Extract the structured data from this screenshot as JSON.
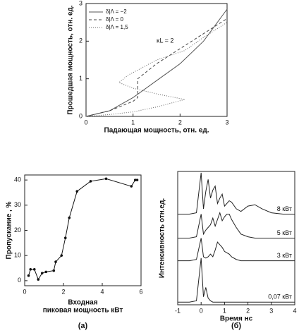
{
  "charts": [
    {
      "type": "line",
      "xlabel": "Падающая мощность, отн. ед.",
      "ylabel": "Прошедшая мощность, отн. ед.",
      "annotation": "κL = 2",
      "xlim": [
        0,
        3
      ],
      "xticks": [
        0,
        1,
        2,
        3
      ],
      "ylim": [
        0,
        3
      ],
      "yticks": [
        0,
        1,
        2,
        3
      ],
      "legend": "upper left",
      "series": [
        {
          "name": "δ|Λ = −2",
          "color": "#555555",
          "dash": "solid",
          "x": [
            0,
            0.5,
            1,
            1.5,
            2,
            2.5,
            3
          ],
          "values": [
            0,
            0.15,
            0.5,
            0.95,
            1.4,
            2.0,
            2.85
          ]
        },
        {
          "name": "δ|Λ = 0",
          "color": "#444444",
          "dash": "dashed",
          "x": [
            0,
            0.5,
            1.0,
            1.1,
            1.1,
            1.5,
            2.0,
            2.5,
            3
          ],
          "values": [
            0,
            0.15,
            0.4,
            0.5,
            1.0,
            1.4,
            1.8,
            2.2,
            2.6
          ]
        },
        {
          "name": "δ|Λ = 1,5",
          "color": "#666666",
          "dash": "dotted",
          "x": [
            0,
            0.5,
            1.0,
            1.5,
            2.1,
            1.5,
            1.0,
            0.7,
            0.9,
            1.5,
            2.1,
            2.5,
            3
          ],
          "values": [
            0,
            0.05,
            0.12,
            0.25,
            0.45,
            0.6,
            0.75,
            0.9,
            1.1,
            1.5,
            1.75,
            2.1,
            2.5
          ]
        }
      ]
    },
    {
      "type": "line",
      "xlabel": [
        "Входная",
        "пиковая мощность  кВт"
      ],
      "ylabel": "Пропускание , %",
      "caption": "(а)",
      "xlim": [
        0,
        6
      ],
      "xticks": [
        0,
        2,
        4,
        6
      ],
      "ylim": [
        -2,
        42
      ],
      "yticks": [
        0,
        10,
        20,
        30,
        40
      ],
      "markers": true,
      "series": [
        {
          "color": "#111111",
          "x": [
            0.2,
            0.3,
            0.5,
            0.7,
            0.9,
            1.1,
            1.5,
            1.6,
            1.9,
            2.1,
            2.3,
            2.7,
            3.4,
            4.2,
            5.5,
            5.7,
            5.8
          ],
          "values": [
            2,
            4.5,
            4.5,
            0.5,
            3,
            3.5,
            4,
            7.5,
            10,
            17,
            25,
            35.5,
            39.5,
            40.5,
            37.5,
            40,
            40
          ]
        }
      ]
    },
    {
      "type": "line",
      "xlabel": "Время  нс",
      "ylabel": "Интенсивность  отн.ед.",
      "caption": "(б)",
      "xlim": [
        -1,
        4
      ],
      "xticks": [
        -1,
        0,
        1,
        2,
        3,
        4
      ],
      "ylim": [
        0,
        10
      ],
      "x": [
        -1,
        -0.5,
        -0.2,
        0,
        0.1,
        0.2,
        0.3,
        0.4,
        0.5,
        0.6,
        0.7,
        0.8,
        0.9,
        1.0,
        1.1,
        1.2,
        1.3,
        1.5,
        1.7,
        2.0,
        2.3,
        2.6,
        3.0,
        3.5,
        4.0
      ],
      "series": [
        {
          "name": "8 кВт",
          "color": "#222222",
          "values": [
            6.8,
            6.8,
            6.9,
            9.9,
            7.2,
            8.5,
            9.4,
            8.0,
            8.6,
            8.9,
            7.6,
            8.0,
            8.3,
            7.4,
            7.6,
            7.8,
            7.7,
            7.2,
            7.0,
            7.4,
            7.5,
            7.2,
            6.9,
            6.8,
            6.8
          ]
        },
        {
          "name": "5 кВт",
          "color": "#222222",
          "values": [
            5.0,
            5.0,
            5.1,
            6.8,
            5.3,
            5.6,
            5.8,
            6.0,
            6.5,
            5.9,
            6.4,
            6.9,
            6.3,
            6.6,
            6.8,
            6.8,
            6.4,
            5.8,
            5.3,
            5.1,
            5.0,
            5.0,
            5.0,
            5.0,
            5.0
          ]
        },
        {
          "name": "3 кВт",
          "color": "#222222",
          "values": [
            3.3,
            3.3,
            3.4,
            5.0,
            3.6,
            3.5,
            3.6,
            3.8,
            3.6,
            4.1,
            4.7,
            4.5,
            4.3,
            4.0,
            3.9,
            3.8,
            3.6,
            3.4,
            3.3,
            3.3,
            3.3,
            3.3,
            3.3,
            3.3,
            3.3
          ]
        },
        {
          "name": "0,07 кВт",
          "color": "#222222",
          "values": [
            0.2,
            0.2,
            0.3,
            3.5,
            0.6,
            1.3,
            0.5,
            0.3,
            0.2,
            0.2,
            0.2,
            0.2,
            0.2,
            0.2,
            0.2,
            0.2,
            0.2,
            0.2,
            0.2,
            0.2,
            0.2,
            0.2,
            0.2,
            0.2,
            0.2
          ]
        }
      ]
    }
  ]
}
